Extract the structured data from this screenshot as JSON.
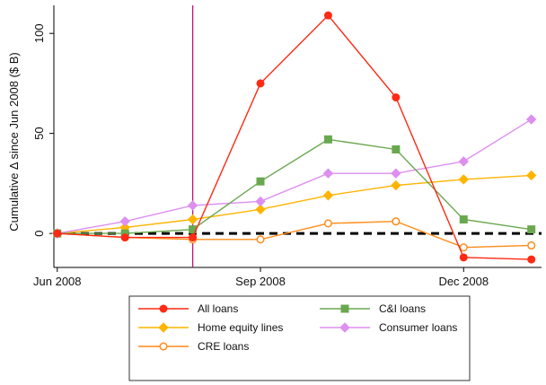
{
  "chart_data": {
    "type": "line",
    "title": "",
    "ylabel": "Cumulative Δ since Jun 2008 ($ B)",
    "xlabel": "",
    "x_tick_labels": [
      {
        "x": 0,
        "label": "Jun 2008"
      },
      {
        "x": 3,
        "label": "Sep 2008"
      },
      {
        "x": 6,
        "label": "Dec 2008"
      }
    ],
    "y_ticks": [
      0,
      50,
      100
    ],
    "xlim": [
      -0.05,
      7.15
    ],
    "ylim": [
      -17,
      114
    ],
    "vertical_line": {
      "x": 2.0,
      "color": "#c0146f"
    },
    "zero_line": {
      "y": 0,
      "style": "dashed",
      "color": "#000000"
    },
    "x": [
      0,
      1,
      2,
      3,
      4,
      5,
      6,
      7
    ],
    "series": [
      {
        "name": "All loans",
        "color": "#ff2a14",
        "marker": "circle-filled",
        "values": [
          0,
          -2,
          -2,
          75,
          109,
          68,
          -12,
          -13
        ]
      },
      {
        "name": "C&I loans",
        "color": "#6aa84f",
        "marker": "square-filled",
        "values": [
          0,
          0,
          2,
          26,
          47,
          42,
          7,
          2
        ]
      },
      {
        "name": "Home equity lines",
        "color": "#ffb400",
        "marker": "diamond-filled",
        "values": [
          0,
          3,
          7,
          12,
          19,
          24,
          27,
          29
        ]
      },
      {
        "name": "Consumer loans",
        "color": "#dd8ff0",
        "marker": "diamond-filled",
        "values": [
          0,
          6,
          14,
          16,
          30,
          30,
          36,
          57
        ]
      },
      {
        "name": "CRE loans",
        "color": "#ff8c1a",
        "marker": "circle-hollow",
        "values": [
          0,
          -2,
          -3,
          -3,
          5,
          6,
          -7,
          -6
        ]
      }
    ],
    "legend": {
      "placement": "bottom",
      "columns": 2,
      "order": [
        0,
        1,
        2,
        3,
        4
      ]
    }
  }
}
